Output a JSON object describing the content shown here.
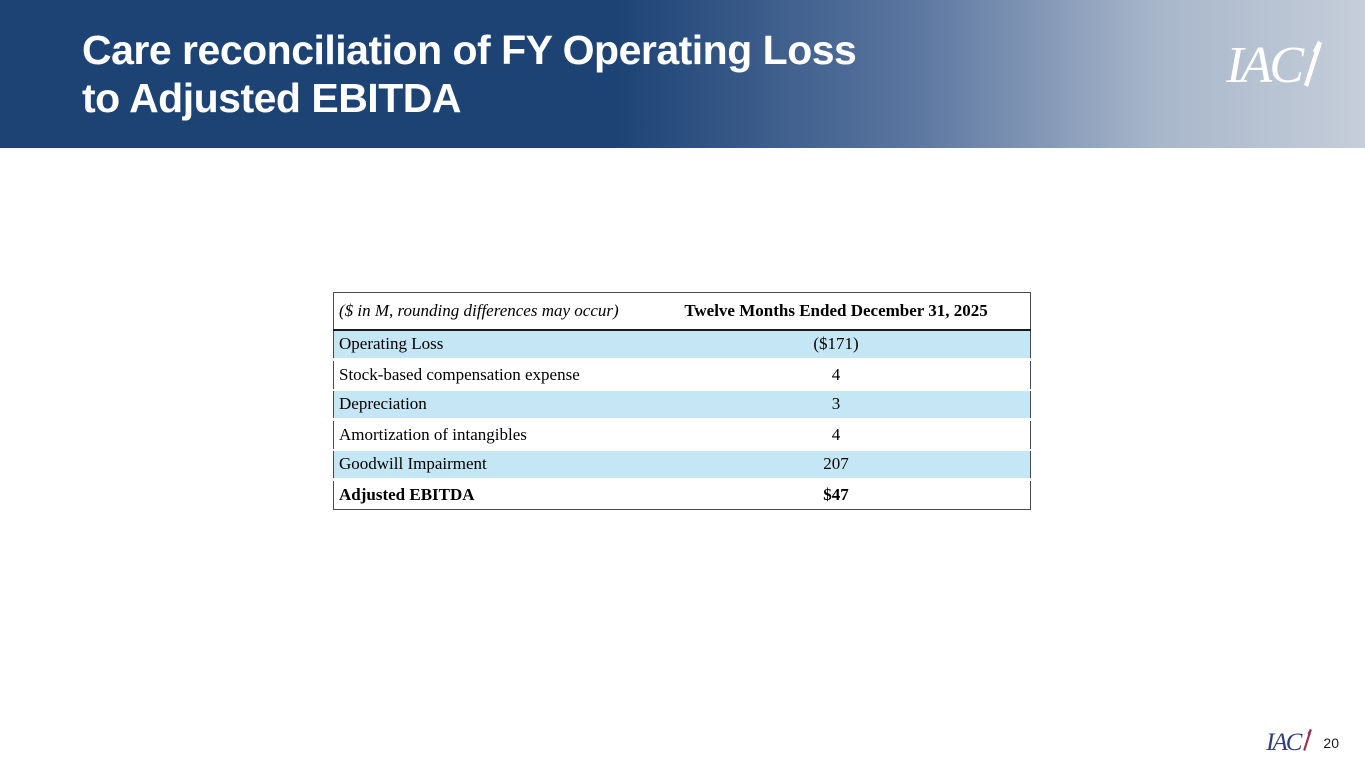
{
  "slide": {
    "title_line1": "Care reconciliation of FY Operating Loss",
    "title_line2": "to Adjusted EBITDA",
    "logo_text": "IAC",
    "page_number": "20"
  },
  "table": {
    "note": "($ in M, rounding differences may occur)",
    "period_header": "Twelve Months Ended December 31, 2025",
    "rows": [
      {
        "label": "Operating Loss",
        "value": "($171)"
      },
      {
        "label": "Stock-based compensation expense",
        "value": "4"
      },
      {
        "label": "Depreciation",
        "value": "3"
      },
      {
        "label": "Amortization of intangibles",
        "value": "4"
      },
      {
        "label": "Goodwill Impairment",
        "value": "207"
      },
      {
        "label": "Adjusted EBITDA",
        "value": "$47"
      }
    ]
  },
  "colors": {
    "banner_navy": "#1d4375",
    "banner_gradient_end": "#c5ced9",
    "row_highlight_blue": "#c5e6f5",
    "footer_logo_navy": "#2e3d7c",
    "footer_logo_slash_maroon": "#9c2f4a",
    "table_border": "#4a4a4a"
  }
}
